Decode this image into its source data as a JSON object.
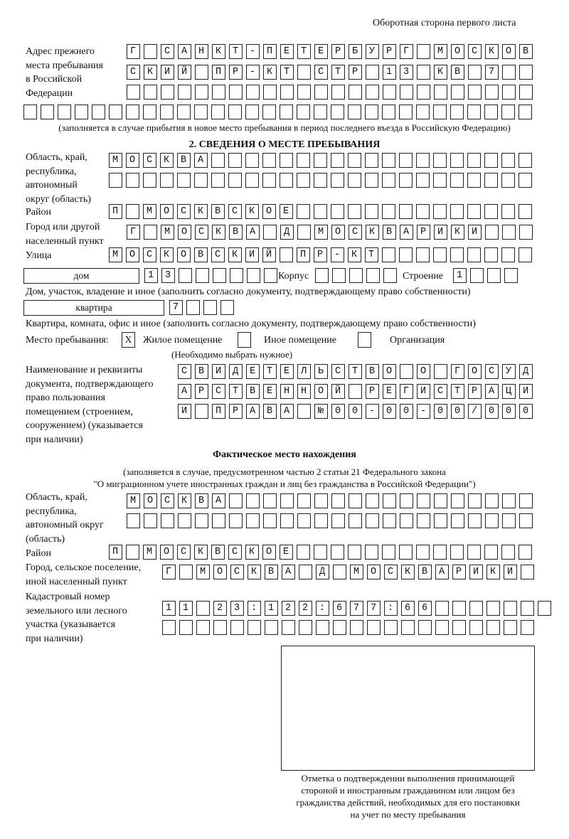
{
  "header": "Оборотная сторона первого листа",
  "prev": {
    "label": [
      "Адрес прежнего",
      "места пребывания",
      "в Российской",
      "Федерации"
    ],
    "rows": [
      "Г САНКТ-ПЕТЕРБУРГ МОСКОВ",
      "СКИЙ ПР-КТ СТР 13 КВ 7  ",
      "                        ",
      "                              "
    ],
    "note": "(заполняется в случае прибытия в новое место пребывания в период последнего въезда в Российскую Федерацию)"
  },
  "section2": {
    "title": "2. СВЕДЕНИЯ О МЕСТЕ ПРЕБЫВАНИЯ",
    "region_label": [
      "Область, край,",
      "республика,",
      "автономный",
      "округ (область)"
    ],
    "region_rows": [
      "МОСКВА                   ",
      "                         "
    ],
    "district_label": "Район",
    "district": "П МОСКВСКОЕ              ",
    "city_label": [
      "Город или другой",
      "населенный пункт"
    ],
    "city": "Г МОСКВА Д МОСКВАРИКИ   ",
    "street_label": "Улица",
    "street": "МОСКОВСКИЙ ПР-КТ         ",
    "house_type": "дом",
    "house": "13      ",
    "korpus_label": "Корпус",
    "korpus": "     ",
    "building_label": "Строение",
    "building": "1   ",
    "house_note": "Дом, участок, владение и иное (заполнить согласно документу, подтверждающему право собственности)",
    "flat_type": "квартира",
    "flat": "7   ",
    "flat_note": "Квартира, комната, офис и иное (заполнить согласно документу, подтверждающему право собственности)",
    "stay_label": "Место пребывания:",
    "stay_options": [
      {
        "label": "Жилое помещение",
        "mark": "X"
      },
      {
        "label": "Иное помещение",
        "mark": ""
      },
      {
        "label": "Организация",
        "mark": ""
      }
    ],
    "stay_note": "(Необходимо выбрать нужное)",
    "doc_label": [
      "Наименование и реквизиты",
      "документа, подтверждающего",
      "право пользования",
      "помещением (строением,",
      "сооружением) (указывается",
      "при наличии)"
    ],
    "doc_rows": [
      "СВИДЕТЕЛЬСТВО О ГОСУД",
      "АРСТВЕННОЙ РЕГИСТРАЦИ",
      "И ПРАВА №00-00-00/000"
    ]
  },
  "actual": {
    "title": "Фактическое место нахождения",
    "note": [
      "(заполняется в случае, предусмотренном частью 2 статьи 21 Федерального закона",
      "\"О миграционном учете иностранных граждан и лиц без гражданства в Российской Федерации\")"
    ],
    "region_label": [
      "Область, край,",
      "республика,",
      "автономный округ",
      "(область)"
    ],
    "region_rows": [
      "МОСКВА                  ",
      "                        "
    ],
    "district_label": "Район",
    "district": "П МОСКВСКОЕ              ",
    "city_label": [
      "Город, сельское поселение,",
      "иной населенный пункт"
    ],
    "city": "Г МОСКВА Д МОСКВАРИКИ ",
    "cadastre_label": [
      "Кадастровый номер",
      "земельного или лесного",
      "участка (указывается",
      "при наличии)"
    ],
    "cadastre_rows": [
      "11 23:122:677:66       ",
      "                      "
    ]
  },
  "stamp_caption": [
    "Отметка о подтверждении выполнения принимающей",
    "стороной и иностранным гражданином или лицом без",
    "гражданства действий, необходимых для его постановки",
    "на учет по месту пребывания"
  ]
}
